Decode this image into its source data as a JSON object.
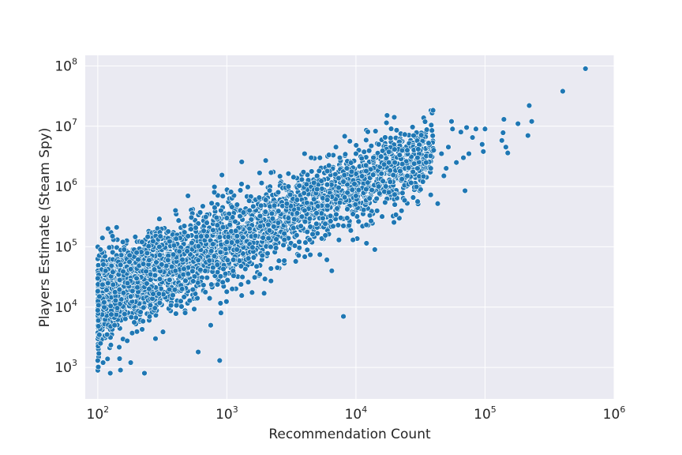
{
  "chart_data": {
    "type": "scatter",
    "title": "",
    "xlabel": "Recommendation Count",
    "ylabel": "Players Estimate (Steam Spy)",
    "x_scale": "log",
    "y_scale": "log",
    "xlim": [
      80,
      1000000
    ],
    "ylim": [
      300,
      150000000
    ],
    "grid": true,
    "legend": "none",
    "colors": {
      "background": "#eaeaf2",
      "grid": "#ffffff",
      "point": "#1f77b4",
      "point_edge": "#ffffff"
    },
    "x_ticks": [
      {
        "base": "10",
        "exp": "2",
        "value": 100
      },
      {
        "base": "10",
        "exp": "3",
        "value": 1000
      },
      {
        "base": "10",
        "exp": "4",
        "value": 10000
      },
      {
        "base": "10",
        "exp": "5",
        "value": 100000
      },
      {
        "base": "10",
        "exp": "6",
        "value": 1000000
      }
    ],
    "y_ticks": [
      {
        "base": "10",
        "exp": "3",
        "value": 1000
      },
      {
        "base": "10",
        "exp": "4",
        "value": 10000
      },
      {
        "base": "10",
        "exp": "5",
        "value": 100000
      },
      {
        "base": "10",
        "exp": "6",
        "value": 1000000
      },
      {
        "base": "10",
        "exp": "7",
        "value": 10000000
      },
      {
        "base": "10",
        "exp": "8",
        "value": 100000000
      }
    ],
    "series": [
      {
        "points": [
          [
            600000,
            90000000
          ],
          [
            400000,
            38000000
          ],
          [
            230000,
            12000000
          ],
          [
            220000,
            22000000
          ],
          [
            215000,
            7000000
          ],
          [
            180000,
            11000000
          ],
          [
            150000,
            3600000
          ],
          [
            145000,
            4500000
          ],
          [
            140000,
            13000000
          ],
          [
            138000,
            7800000
          ],
          [
            135000,
            5800000
          ],
          [
            100000,
            9000000
          ],
          [
            97000,
            3800000
          ],
          [
            95000,
            5000000
          ],
          [
            85000,
            9000000
          ],
          [
            80000,
            6500000
          ],
          [
            75000,
            3500000
          ],
          [
            72000,
            9500000
          ],
          [
            70000,
            850000
          ],
          [
            68000,
            3000000
          ],
          [
            65000,
            8000000
          ],
          [
            60000,
            2500000
          ],
          [
            56000,
            9000000
          ],
          [
            55000,
            12000000
          ],
          [
            52000,
            4500000
          ],
          [
            50000,
            2000000
          ],
          [
            48000,
            1500000
          ],
          [
            46000,
            3500000
          ],
          [
            43000,
            520000
          ],
          [
            40000,
            4000000
          ],
          [
            38000,
            2000000
          ],
          [
            35000,
            2500000
          ],
          [
            33000,
            1200000
          ],
          [
            30000,
            3000000
          ],
          [
            28000,
            7000000
          ],
          [
            25000,
            4000000
          ],
          [
            22000,
            1800000
          ],
          [
            20000,
            500000
          ],
          [
            18000,
            2500000
          ],
          [
            15000,
            5000000
          ],
          [
            12000,
            900000
          ],
          [
            10000,
            3500000
          ],
          [
            8500,
            2000000
          ],
          [
            8000,
            7000
          ],
          [
            7500,
            3000000
          ],
          [
            7000,
            4500000
          ],
          [
            6500,
            40000
          ],
          [
            6000,
            1800000
          ],
          [
            5000,
            900000
          ],
          [
            4500,
            3000000
          ],
          [
            4000,
            3500000
          ],
          [
            3500,
            600000
          ],
          [
            3000,
            300000
          ],
          [
            2500,
            800000
          ],
          [
            2200,
            1700000
          ],
          [
            2000,
            2700000
          ],
          [
            1800,
            35000
          ],
          [
            1500,
            400000
          ],
          [
            1300,
            1100000
          ],
          [
            1200,
            150000
          ],
          [
            1100,
            20000
          ],
          [
            1000,
            300000
          ],
          [
            900,
            8000
          ],
          [
            880,
            1300
          ],
          [
            800,
            800000
          ],
          [
            750,
            5000
          ],
          [
            700,
            150000
          ],
          [
            600,
            1800
          ],
          [
            500,
            700000
          ],
          [
            450,
            20000
          ],
          [
            400,
            400000
          ],
          [
            350,
            60000
          ],
          [
            300,
            290000
          ],
          [
            280,
            3000
          ],
          [
            250,
            60000
          ],
          [
            230,
            800
          ],
          [
            220,
            120000
          ],
          [
            200,
            30000
          ],
          [
            180,
            1200
          ],
          [
            170,
            25000
          ],
          [
            160,
            90000
          ],
          [
            150,
            900
          ],
          [
            140,
            210000
          ],
          [
            135,
            5000
          ],
          [
            130,
            150000
          ],
          [
            125,
            800
          ],
          [
            120,
            200000
          ],
          [
            118,
            3500
          ],
          [
            115,
            40000
          ],
          [
            110,
            1200
          ],
          [
            108,
            80000
          ],
          [
            105,
            2500
          ],
          [
            103,
            15000
          ],
          [
            102,
            1700
          ],
          [
            101,
            6000
          ],
          [
            100,
            1300
          ],
          [
            100,
            30000
          ],
          [
            105,
            90000
          ],
          [
            112,
            12000
          ],
          [
            120,
            25000
          ],
          [
            150,
            50000
          ],
          [
            200,
            80000
          ],
          [
            180,
            15000
          ],
          [
            250,
            20000
          ],
          [
            300,
            100000
          ],
          [
            400,
            40000
          ],
          [
            500,
            150000
          ],
          [
            600,
            60000
          ],
          [
            700,
            250000
          ],
          [
            800,
            70000
          ],
          [
            900,
            400000
          ],
          [
            1000,
            120000
          ],
          [
            1200,
            500000
          ],
          [
            1500,
            200000
          ],
          [
            2000,
            600000
          ],
          [
            2500,
            250000
          ],
          [
            3000,
            1000000
          ],
          [
            4000,
            400000
          ],
          [
            5000,
            1500000
          ],
          [
            6000,
            600000
          ],
          [
            8000,
            1200000
          ],
          [
            10000,
            700000
          ],
          [
            12000,
            1800000
          ],
          [
            15000,
            1000000
          ],
          [
            18000,
            800000
          ],
          [
            20000,
            2500000
          ],
          [
            25000,
            1500000
          ],
          [
            30000,
            2000000
          ],
          [
            14000,
            90000
          ]
        ]
      }
    ]
  }
}
